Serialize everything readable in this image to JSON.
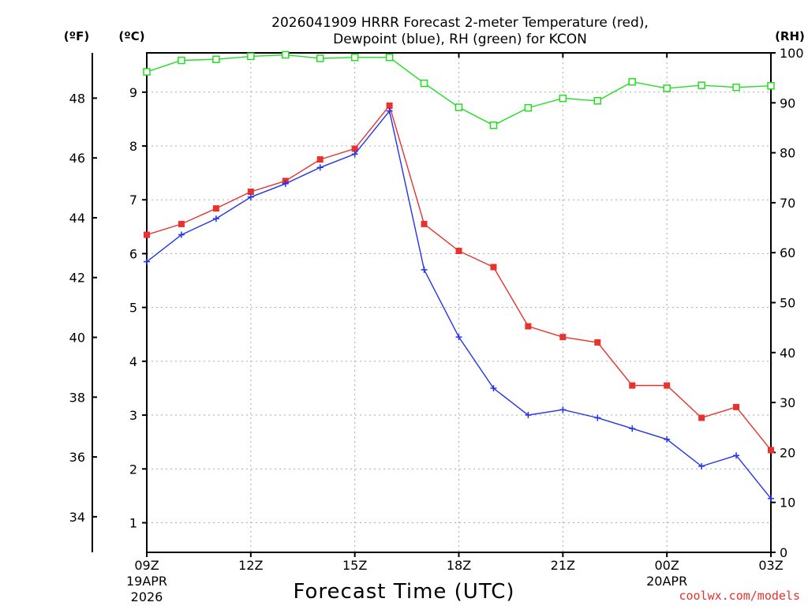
{
  "chart_data": {
    "type": "line",
    "title_line1": "2026041909 HRRR Forecast 2-meter Temperature (red),",
    "title_line2": "Dewpoint (blue), RH (green) for KCON",
    "xlabel": "Forecast Time (UTC)",
    "credit": "coolwx.com/models",
    "units": {
      "fahrenheit": "(ºF)",
      "celsius": "(ºC)",
      "rh": "(RH)"
    },
    "x_hours": [
      0,
      1,
      2,
      3,
      4,
      5,
      6,
      7,
      8,
      9,
      10,
      11,
      12,
      13,
      14,
      15,
      16,
      17,
      18
    ],
    "xlim": [
      0,
      18
    ],
    "x_ticks": [
      {
        "hour": 0,
        "line1": "09Z",
        "line2": "19APR",
        "line3": "2026"
      },
      {
        "hour": 3,
        "line1": "12Z",
        "line2": "",
        "line3": ""
      },
      {
        "hour": 6,
        "line1": "15Z",
        "line2": "",
        "line3": ""
      },
      {
        "hour": 9,
        "line1": "18Z",
        "line2": "",
        "line3": ""
      },
      {
        "hour": 12,
        "line1": "21Z",
        "line2": "",
        "line3": ""
      },
      {
        "hour": 15,
        "line1": "00Z",
        "line2": "20APR",
        "line3": ""
      },
      {
        "hour": 18,
        "line1": "03Z",
        "line2": "",
        "line3": ""
      }
    ],
    "ylim_celsius": [
      0.45,
      9.73
    ],
    "y_ticks_celsius": [
      "1",
      "2",
      "3",
      "4",
      "5",
      "6",
      "7",
      "8",
      "9"
    ],
    "y_ticks_fahrenheit": [
      "34",
      "36",
      "38",
      "40",
      "42",
      "44",
      "46",
      "48"
    ],
    "ylim_rh": [
      0,
      100
    ],
    "y_ticks_rh": [
      "0",
      "10",
      "20",
      "30",
      "40",
      "50",
      "60",
      "70",
      "80",
      "90",
      "100"
    ],
    "grid": true,
    "series": [
      {
        "name": "Temperature",
        "color": "#e8322e",
        "marker": "filled-square",
        "axis": "celsius",
        "values": [
          6.35,
          6.55,
          6.84,
          7.15,
          7.35,
          7.75,
          7.95,
          8.75,
          6.55,
          6.05,
          5.75,
          4.65,
          4.45,
          4.35,
          3.55,
          3.55,
          2.95,
          3.15,
          2.35
        ]
      },
      {
        "name": "Dewpoint",
        "color": "#2233ee",
        "marker": "plus",
        "axis": "celsius",
        "values": [
          5.85,
          6.35,
          6.65,
          7.05,
          7.3,
          7.6,
          7.85,
          8.65,
          5.7,
          4.45,
          3.5,
          3.0,
          3.1,
          2.95,
          2.75,
          2.55,
          2.05,
          2.25,
          1.45
        ]
      },
      {
        "name": "RH",
        "color": "#22dd22",
        "marker": "open-square",
        "axis": "rh",
        "values": [
          96.2,
          98.5,
          98.7,
          99.3,
          99.6,
          98.9,
          99.1,
          99.1,
          93.9,
          89.1,
          85.5,
          89.0,
          90.9,
          90.4,
          94.2,
          92.9,
          93.5,
          93.1,
          93.4
        ]
      }
    ]
  }
}
